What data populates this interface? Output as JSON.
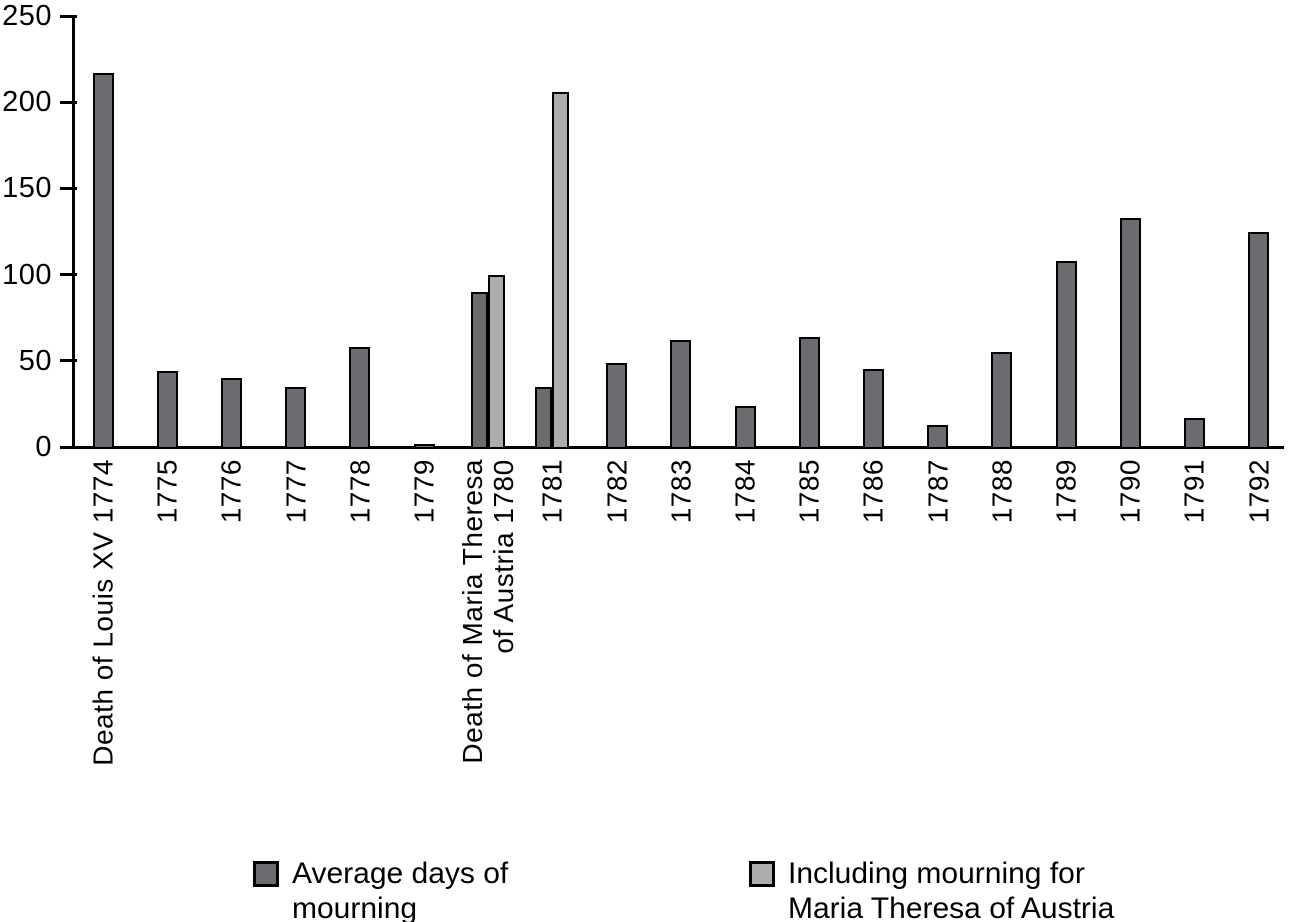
{
  "chart_data": {
    "type": "bar",
    "title": "",
    "xlabel": "",
    "ylabel": "",
    "ylim": [
      0,
      250
    ],
    "yticks": [
      0,
      50,
      100,
      150,
      200,
      250
    ],
    "grid": false,
    "legend_position": "bottom",
    "categories": [
      "Death of Louis XV 1774",
      "1775",
      "1776",
      "1777",
      "1778",
      "1779",
      "Death of Maria Theresa\nof Austria 1780",
      "1781",
      "1782",
      "1783",
      "1784",
      "1785",
      "1786",
      "1787",
      "1788",
      "1789",
      "1790",
      "1791",
      "1792"
    ],
    "years": [
      1774,
      1775,
      1776,
      1777,
      1778,
      1779,
      1780,
      1781,
      1782,
      1783,
      1784,
      1785,
      1786,
      1787,
      1788,
      1789,
      1790,
      1791,
      1792
    ],
    "series": [
      {
        "id": "dark",
        "name": "Average days of mourning",
        "color": "#6b6c6f",
        "values": [
          217,
          44,
          40,
          35,
          58,
          2,
          90,
          35,
          49,
          62,
          24,
          64,
          45,
          13,
          55,
          108,
          133,
          17,
          125
        ]
      },
      {
        "id": "light",
        "name": "Including mourning for Maria Theresa of Austria",
        "color": "#abadaf",
        "values": [
          null,
          null,
          null,
          null,
          null,
          null,
          100,
          206,
          null,
          null,
          null,
          null,
          null,
          null,
          null,
          null,
          null,
          null,
          null
        ]
      }
    ],
    "legend": {
      "entries": [
        {
          "series": "dark",
          "lines": [
            "Average days of",
            "mourning"
          ]
        },
        {
          "series": "light",
          "lines": [
            "Including mourning for",
            "Maria Theresa of Austria"
          ]
        }
      ]
    }
  }
}
